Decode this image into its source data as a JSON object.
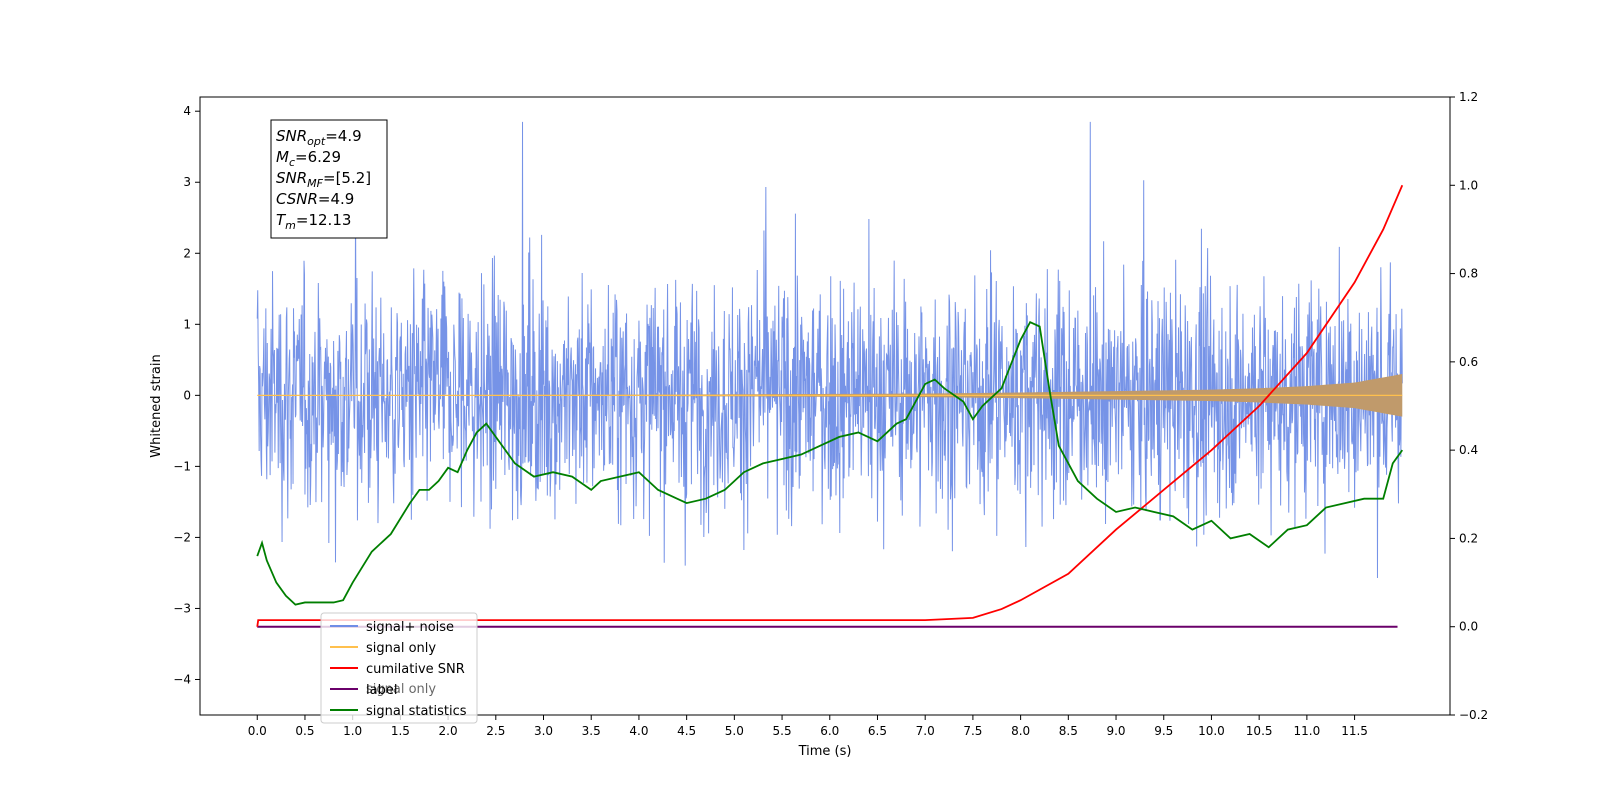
{
  "chart_data": {
    "type": "line",
    "xlabel": "Time (s)",
    "ylabel_left": "Whitened strain",
    "xlim": [
      -0.6,
      12.5
    ],
    "ylim_left": [
      -4.5,
      4.2
    ],
    "ylim_right": [
      -0.2,
      1.2
    ],
    "x_ticks": [
      "0.0",
      "0.5",
      "1.0",
      "1.5",
      "2.0",
      "2.5",
      "3.0",
      "3.5",
      "4.0",
      "4.5",
      "5.0",
      "5.5",
      "6.0",
      "6.5",
      "7.0",
      "7.5",
      "8.0",
      "8.5",
      "9.0",
      "9.5",
      "10.0",
      "10.5",
      "11.0",
      "11.5"
    ],
    "y_ticks_left": [
      "4",
      "3",
      "2",
      "1",
      "0",
      "−1",
      "−2",
      "−3",
      "−4"
    ],
    "y_ticks_right": [
      "1.2",
      "1.0",
      "0.8",
      "0.6",
      "0.4",
      "0.2",
      "0.0",
      "−0.2"
    ],
    "grid": false,
    "legend_placement": "lower-left",
    "colors": {
      "signal_noise": "#6f8de6",
      "signal_only": "#ffc04d",
      "signal_fill": "#c09a6b",
      "cumulative_snr": "#ff0000",
      "label": "#6a006a",
      "statistics": "#007f00"
    },
    "series": [
      {
        "name": "signal+ noise",
        "axis": "left",
        "description_band": "noise",
        "x": [
          0.0,
          12.0
        ],
        "envelope_y": [
          [
            -2.3,
            2.4
          ],
          [
            -2.3,
            2.4
          ]
        ]
      },
      {
        "name": "signal only",
        "axis": "left",
        "x": [
          0.0,
          2.0,
          4.0,
          6.0,
          7.0,
          8.0,
          9.0,
          10.0,
          10.5,
          11.0,
          11.5,
          12.0
        ],
        "amplitude": [
          0.0,
          0.005,
          0.01,
          0.02,
          0.025,
          0.04,
          0.06,
          0.08,
          0.1,
          0.13,
          0.18,
          0.3
        ]
      },
      {
        "name": "cumilative SNR",
        "axis": "right",
        "x": [
          0.0,
          0.01,
          7.0,
          7.5,
          7.8,
          8.0,
          8.5,
          9.0,
          9.5,
          10.0,
          10.5,
          11.0,
          11.5,
          11.8,
          12.0
        ],
        "y": [
          0.0,
          0.015,
          0.015,
          0.02,
          0.04,
          0.06,
          0.12,
          0.22,
          0.31,
          0.4,
          0.5,
          0.62,
          0.78,
          0.9,
          1.0
        ]
      },
      {
        "name": "label",
        "axis": "right",
        "x": [
          0.0,
          11.95
        ],
        "y": [
          0.0,
          0.0
        ]
      },
      {
        "name": "signal statistics",
        "axis": "right",
        "x": [
          0.0,
          0.05,
          0.1,
          0.2,
          0.3,
          0.4,
          0.5,
          0.6,
          0.8,
          0.9,
          1.0,
          1.2,
          1.4,
          1.6,
          1.7,
          1.8,
          1.9,
          2.0,
          2.1,
          2.2,
          2.3,
          2.4,
          2.5,
          2.7,
          2.9,
          3.1,
          3.3,
          3.5,
          3.6,
          3.8,
          4.0,
          4.2,
          4.4,
          4.5,
          4.7,
          4.9,
          5.1,
          5.3,
          5.5,
          5.7,
          5.9,
          6.1,
          6.3,
          6.5,
          6.7,
          6.8,
          7.0,
          7.1,
          7.2,
          7.4,
          7.5,
          7.6,
          7.8,
          8.0,
          8.1,
          8.2,
          8.3,
          8.4,
          8.6,
          8.8,
          9.0,
          9.2,
          9.4,
          9.6,
          9.8,
          10.0,
          10.2,
          10.4,
          10.6,
          10.8,
          11.0,
          11.2,
          11.4,
          11.6,
          11.8,
          11.9,
          12.0
        ],
        "y": [
          0.16,
          0.19,
          0.15,
          0.1,
          0.07,
          0.05,
          0.055,
          0.055,
          0.055,
          0.06,
          0.1,
          0.17,
          0.21,
          0.28,
          0.31,
          0.31,
          0.33,
          0.36,
          0.35,
          0.4,
          0.44,
          0.46,
          0.43,
          0.37,
          0.34,
          0.35,
          0.34,
          0.31,
          0.33,
          0.34,
          0.35,
          0.31,
          0.29,
          0.28,
          0.29,
          0.31,
          0.35,
          0.37,
          0.38,
          0.39,
          0.41,
          0.43,
          0.44,
          0.42,
          0.46,
          0.47,
          0.55,
          0.56,
          0.54,
          0.51,
          0.47,
          0.5,
          0.54,
          0.65,
          0.69,
          0.68,
          0.54,
          0.41,
          0.33,
          0.29,
          0.26,
          0.27,
          0.26,
          0.25,
          0.22,
          0.24,
          0.2,
          0.21,
          0.18,
          0.22,
          0.23,
          0.27,
          0.28,
          0.29,
          0.29,
          0.37,
          0.4
        ]
      }
    ],
    "annotation_box": {
      "lines": [
        {
          "label": "SNR",
          "sub": "opt",
          "value": "=4.9"
        },
        {
          "label": "M",
          "sub": "c",
          "value": "=6.29"
        },
        {
          "label": "SNR",
          "sub": "MF",
          "value": "=[5.2]"
        },
        {
          "label": "CSNR",
          "sub": "",
          "value": "=4.9"
        },
        {
          "label": "T",
          "sub": "m",
          "value": "=12.13"
        }
      ]
    },
    "legend": [
      {
        "label": "signal+ noise",
        "color": "#6f8de6"
      },
      {
        "label": "signal only",
        "color": "#ffc04d"
      },
      {
        "label": "cumilative SNR",
        "color": "#ff0000"
      },
      {
        "label": "label",
        "color": "#6a006a"
      },
      {
        "label": "signal statistics",
        "color": "#007f00"
      }
    ],
    "legend_overlap_text": "signal only"
  }
}
